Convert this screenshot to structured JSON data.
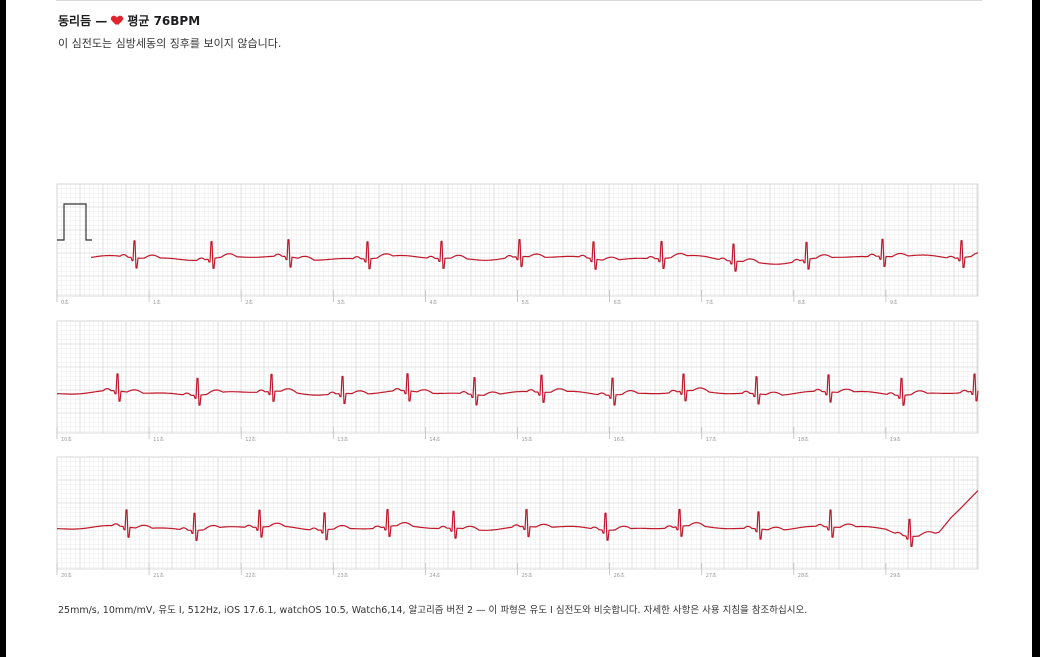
{
  "header": {
    "title": "동리듬 —",
    "heart_icon": "heart-icon",
    "average": "평균 76BPM",
    "subtitle": "이 심전도는 심방세동의 징후를 보이지 않습니다."
  },
  "footer": {
    "text": "25mm/s, 10mm/mV, 유도 I, 512Hz, iOS 17.6.1, watchOS 10.5, Watch6,14, 알고리즘 버전 2 — 이 파형은 유도 I 심전도와 비슷합니다. 자세한 사항은 사용 지침을 참조하십시오."
  },
  "colors": {
    "trace": "#c0182b",
    "grid_minor": "#ebebeb",
    "grid_major": "#d4d4d4",
    "heart": "#e0252e"
  },
  "strips": [
    {
      "labels": [
        "0초",
        "1초",
        "2초",
        "3초",
        "4초",
        "5초",
        "6초",
        "7초",
        "8초",
        "9초"
      ]
    },
    {
      "labels": [
        "10초",
        "11초",
        "12초",
        "13초",
        "14초",
        "15초",
        "16초",
        "17초",
        "18초",
        "19초"
      ]
    },
    {
      "labels": [
        "20초",
        "21초",
        "22초",
        "23초",
        "24초",
        "25초",
        "26초",
        "27초",
        "28초",
        "29초"
      ]
    }
  ]
}
